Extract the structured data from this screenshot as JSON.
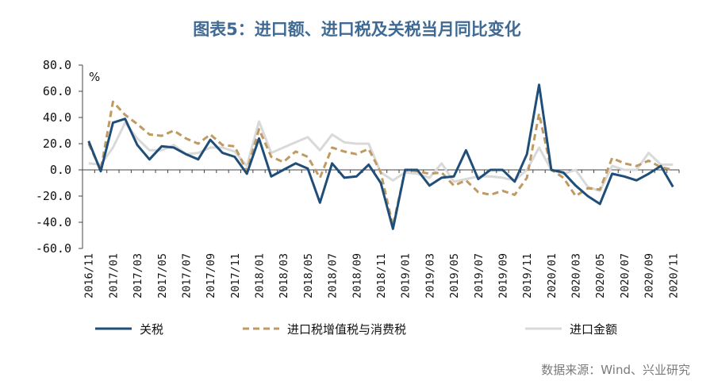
{
  "chart_data": {
    "type": "line",
    "title": "图表5：进口额、进口税及关税当月同比变化",
    "unit_label": "%",
    "ylim": [
      -60,
      80
    ],
    "yticks": [
      80,
      60,
      40,
      20,
      0,
      -20,
      -40,
      -60
    ],
    "ytick_labels": [
      "80.0",
      "60.0",
      "40.0",
      "20.0",
      "0.0",
      "-20.0",
      "-40.0",
      "-60.0"
    ],
    "x": [
      "2016/11",
      "2016/12",
      "2017/01",
      "2017/02",
      "2017/03",
      "2017/04",
      "2017/05",
      "2017/06",
      "2017/07",
      "2017/08",
      "2017/09",
      "2017/10",
      "2017/11",
      "2017/12",
      "2018/01",
      "2018/02",
      "2018/03",
      "2018/04",
      "2018/05",
      "2018/06",
      "2018/07",
      "2018/08",
      "2018/09",
      "2018/10",
      "2018/11",
      "2018/12",
      "2019/01",
      "2019/02",
      "2019/03",
      "2019/04",
      "2019/05",
      "2019/06",
      "2019/07",
      "2019/08",
      "2019/09",
      "2019/10",
      "2019/11",
      "2019/12",
      "2020/01",
      "2020/02",
      "2020/03",
      "2020/04",
      "2020/05",
      "2020/06",
      "2020/07",
      "2020/08",
      "2020/09",
      "2020/10",
      "2020/11"
    ],
    "xtick_labels": [
      "2016/11",
      "2017/01",
      "2017/03",
      "2017/05",
      "2017/07",
      "2017/09",
      "2017/11",
      "2018/01",
      "2018/03",
      "2018/05",
      "2018/07",
      "2018/09",
      "2018/11",
      "2019/01",
      "2019/03",
      "2019/05",
      "2019/07",
      "2019/09",
      "2019/11",
      "2020/01",
      "2020/03",
      "2020/05",
      "2020/07",
      "2020/09",
      "2020/11"
    ],
    "series": [
      {
        "name": "关税",
        "color": "#1f4e79",
        "style": "solid",
        "values": [
          22,
          -1,
          36,
          39,
          19,
          8,
          18,
          17,
          12,
          8,
          23,
          13,
          10,
          -3,
          24,
          -5,
          0,
          5,
          1,
          -25,
          5,
          -6,
          -5,
          4,
          -10,
          -45,
          0,
          0,
          -12,
          -6,
          -5,
          15,
          -7,
          0,
          0,
          -9,
          12,
          65,
          0,
          -2,
          -12,
          -20,
          -26,
          -3,
          -5,
          -8,
          -3,
          3,
          -13
        ]
      },
      {
        "name": "进口税增值税与消费税",
        "color": "#bf9a63",
        "style": "dashed",
        "values": [
          20,
          0,
          52,
          42,
          35,
          27,
          26,
          30,
          24,
          20,
          27,
          19,
          18,
          -1,
          31,
          10,
          6,
          14,
          10,
          -6,
          17,
          14,
          12,
          16,
          -2,
          -43,
          0,
          -1,
          -3,
          -2,
          -12,
          -8,
          -17,
          -19,
          -16,
          -19,
          -6,
          43,
          0,
          -6,
          -20,
          -14,
          -15,
          9,
          5,
          3,
          7,
          2,
          0
        ]
      },
      {
        "name": "进口金额",
        "color": "#d9d9d9",
        "style": "solid",
        "values": [
          5,
          4,
          17,
          36,
          24,
          15,
          15,
          19,
          12,
          13,
          17,
          17,
          14,
          3,
          37,
          13,
          17,
          21,
          25,
          15,
          27,
          21,
          20,
          20,
          -2,
          -8,
          -2,
          -3,
          -6,
          5,
          -9,
          -7,
          -5,
          -5,
          -6,
          -8,
          0,
          17,
          0,
          -3,
          0,
          -13,
          -16,
          3,
          0,
          0,
          13,
          4,
          4
        ]
      }
    ]
  },
  "source": "数据来源：Wind、兴业研究"
}
